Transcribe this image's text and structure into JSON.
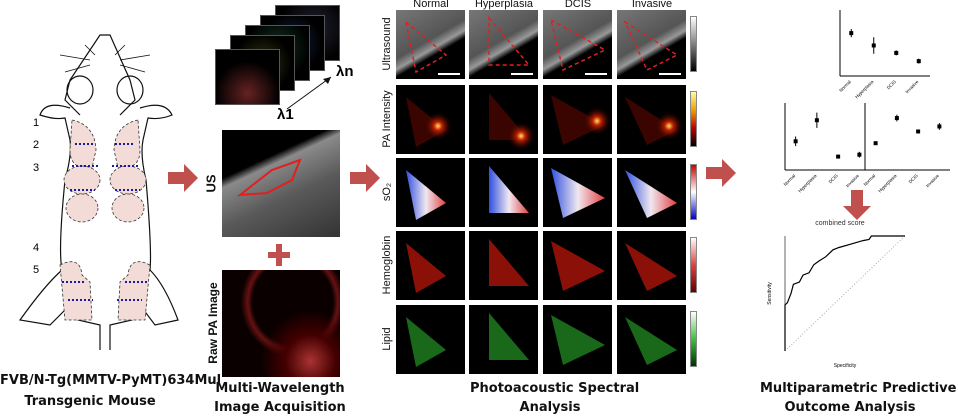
{
  "mouse": {
    "gland_labels": [
      "1",
      "2",
      "3",
      "4",
      "5"
    ],
    "caption_line1": "FVB/N-Tg(MMTV-PyMT)634Mul",
    "caption_line2": "Transgenic Mouse"
  },
  "acquisition": {
    "lambda_1": "λ1",
    "lambda_n": "λn",
    "us_label": "US",
    "raw_pa_label": "Raw PA Image",
    "caption_line1": "Multi-Wavelength",
    "caption_line2": "Image Acquisition"
  },
  "spectral": {
    "columns": [
      "Normal",
      "Hyperplasia",
      "DCIS",
      "Invasive"
    ],
    "rows": [
      "Ultrasound",
      "PA Intensity",
      "sO₂",
      "Hemoglobin",
      "Lipid"
    ],
    "caption_line1": "Photoacoustic Spectral",
    "caption_line2": "Analysis"
  },
  "outcome": {
    "roc_title": "combined score",
    "caption_line1": "Multiparametric Predictive",
    "caption_line2": "Outcome Analysis"
  },
  "colors": {
    "arrow": "#c0504d",
    "roi": "#e02020"
  },
  "chart_data": [
    {
      "type": "scatter",
      "title": "",
      "categories": [
        "Normal",
        "Hyperplasia",
        "DCIS",
        "Invasive"
      ],
      "values": [
        0.72,
        0.57,
        0.48,
        0.38
      ],
      "errors": [
        0.05,
        0.1,
        0.03,
        0.03
      ]
    },
    {
      "type": "scatter",
      "title": "",
      "categories": [
        "Normal",
        "Hyperplasia",
        "DCIS",
        "Invasive"
      ],
      "values": [
        0.5,
        0.72,
        0.34,
        0.36
      ],
      "errors": [
        0.05,
        0.08,
        0.01,
        0.03
      ]
    },
    {
      "type": "scatter",
      "title": "",
      "categories": [
        "Normal",
        "Hyperplasia",
        "DCIS",
        "Invasive"
      ],
      "values": [
        36,
        51,
        43,
        46
      ],
      "errors": [
        1,
        2,
        1,
        2
      ]
    },
    {
      "type": "line",
      "title": "combined score",
      "xlabel": "Specificity",
      "ylabel": "Sensitivity",
      "xlim": [
        1.0,
        0.0
      ],
      "ylim": [
        0.0,
        1.0
      ],
      "x": [
        1.0,
        1.0,
        0.98,
        0.95,
        0.93,
        0.88,
        0.85,
        0.8,
        0.76,
        0.72,
        0.66,
        0.6,
        0.55,
        0.45,
        0.35,
        0.3,
        0.28,
        0.1,
        0.0
      ],
      "y": [
        0.0,
        0.4,
        0.42,
        0.5,
        0.58,
        0.6,
        0.66,
        0.68,
        0.75,
        0.78,
        0.82,
        0.88,
        0.9,
        0.93,
        0.96,
        0.97,
        1.0,
        1.0,
        1.0
      ]
    }
  ]
}
